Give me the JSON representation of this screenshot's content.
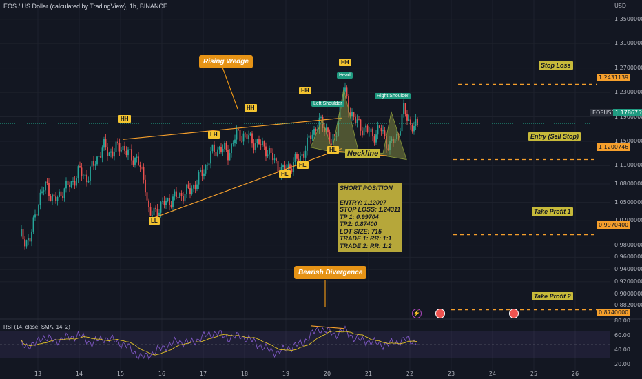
{
  "header": {
    "title": "EOS / US Dollar (calculated by TradingView), 1h, BINANCE"
  },
  "axis": {
    "currency": "USD",
    "y_ticks": [
      "1.3500000",
      "1.3100000",
      "1.2700000",
      "1.2300000",
      "1.1900000",
      "1.1500000",
      "1.1100000",
      "1.0800000",
      "1.0500000",
      "1.0200000",
      "0.9800000",
      "0.9600000",
      "0.9400000",
      "0.9200000",
      "0.9000000",
      "0.8820000"
    ],
    "x_ticks": [
      "13",
      "14",
      "15",
      "16",
      "17",
      "18",
      "19",
      "20",
      "21",
      "22",
      "23",
      "24",
      "25",
      "26"
    ],
    "price_labels": {
      "stop_loss": "1.2431139",
      "entry": "1.1200746",
      "tp1": "0.9970400",
      "tp2": "0.8740000"
    },
    "symbol": "EOSUSD",
    "last_price": "1.1786759"
  },
  "annotations": {
    "rising_wedge": "Rising  Wedge",
    "bearish_divergence": "Bearish Divergence",
    "neckline": "Neckline",
    "head": "Head",
    "left_shoulder": "Left Shoulder",
    "right_shoulder": "Right Shoulder",
    "swing_tags": {
      "hh1": "HH",
      "hh2": "HH",
      "hh3": "HH",
      "hh4": "HH",
      "lh": "LH",
      "ll": "LL",
      "hl1": "HL",
      "hl2": "HL",
      "hl3": "HL"
    },
    "levels": {
      "stop_loss": "Stop Loss",
      "entry": "Entry (Sell Stop)",
      "tp1": "Take Profit 1",
      "tp2": "Take Profit 2"
    }
  },
  "trade_box": {
    "title": "SHORT POSITION",
    "lines": [
      "ENTRY: 1.12007",
      "STOP LOSS: 1.24311",
      "TP 1: 0.99704",
      "TP2: 0.87400",
      "LOT SIZE: 715",
      "TRADE 1: RR: 1:1",
      "TRADE 2: RR: 1:2"
    ]
  },
  "rsi": {
    "title": "RSI (14, close, SMA, 14, 2)",
    "ticks": [
      "80.00",
      "60.00",
      "40.00",
      "20.00"
    ]
  },
  "colors": {
    "bg": "#131722",
    "up": "#26a69a",
    "down": "#ef5350",
    "orange": "#f59f2c",
    "callout": "#e69316",
    "teal": "#1f9a80",
    "rsi_line": "#7e57c2",
    "rsi_sma": "#e0c027"
  },
  "chart_data": {
    "type": "candlestick",
    "title": "EOS / US Dollar (calculated by TradingView), 1h, BINANCE",
    "x_dates": [
      "13",
      "14",
      "15",
      "16",
      "17",
      "18",
      "19",
      "20",
      "21",
      "22"
    ],
    "ylim": [
      0.86,
      1.37
    ],
    "levels": {
      "stop_loss": 1.24311,
      "entry": 1.12007,
      "tp1": 0.99704,
      "tp2": 0.874
    },
    "price_path": [
      [
        12.6,
        0.995
      ],
      [
        12.8,
        0.985
      ],
      [
        13.0,
        1.05
      ],
      [
        13.2,
        1.08
      ],
      [
        13.4,
        1.05
      ],
      [
        13.6,
        1.07
      ],
      [
        13.8,
        1.08
      ],
      [
        14.0,
        1.1
      ],
      [
        14.2,
        1.09
      ],
      [
        14.4,
        1.12
      ],
      [
        14.6,
        1.14
      ],
      [
        14.8,
        1.13
      ],
      [
        15.0,
        1.145
      ],
      [
        15.15,
        1.13
      ],
      [
        15.4,
        1.12
      ],
      [
        15.6,
        1.08
      ],
      [
        15.7,
        1.025
      ],
      [
        15.9,
        1.04
      ],
      [
        16.1,
        1.05
      ],
      [
        16.4,
        1.06
      ],
      [
        16.7,
        1.07
      ],
      [
        17.0,
        1.1
      ],
      [
        17.2,
        1.13
      ],
      [
        17.4,
        1.14
      ],
      [
        17.6,
        1.13
      ],
      [
        17.8,
        1.16
      ],
      [
        18.0,
        1.16
      ],
      [
        18.2,
        1.15
      ],
      [
        18.5,
        1.14
      ],
      [
        18.7,
        1.12
      ],
      [
        18.9,
        1.1
      ],
      [
        19.1,
        1.11
      ],
      [
        19.3,
        1.12
      ],
      [
        19.5,
        1.14
      ],
      [
        19.6,
        1.16
      ],
      [
        19.8,
        1.18
      ],
      [
        20.0,
        1.17
      ],
      [
        20.1,
        1.14
      ],
      [
        20.2,
        1.16
      ],
      [
        20.3,
        1.2
      ],
      [
        20.4,
        1.235
      ],
      [
        20.55,
        1.2
      ],
      [
        20.7,
        1.18
      ],
      [
        20.9,
        1.17
      ],
      [
        21.1,
        1.16
      ],
      [
        21.3,
        1.17
      ],
      [
        21.5,
        1.14
      ],
      [
        21.7,
        1.16
      ],
      [
        21.85,
        1.2
      ],
      [
        22.0,
        1.18
      ],
      [
        22.2,
        1.17
      ]
    ],
    "rsi_path": [
      [
        12.6,
        50
      ],
      [
        12.9,
        48
      ],
      [
        13.1,
        62
      ],
      [
        13.4,
        55
      ],
      [
        13.7,
        60
      ],
      [
        14.0,
        64
      ],
      [
        14.3,
        52
      ],
      [
        14.6,
        60
      ],
      [
        14.9,
        55
      ],
      [
        15.2,
        46
      ],
      [
        15.5,
        30
      ],
      [
        15.8,
        38
      ],
      [
        16.1,
        48
      ],
      [
        16.4,
        55
      ],
      [
        16.7,
        52
      ],
      [
        17.0,
        62
      ],
      [
        17.3,
        68
      ],
      [
        17.6,
        60
      ],
      [
        17.9,
        63
      ],
      [
        18.2,
        55
      ],
      [
        18.5,
        44
      ],
      [
        18.8,
        38
      ],
      [
        19.1,
        46
      ],
      [
        19.4,
        52
      ],
      [
        19.6,
        64
      ],
      [
        19.8,
        74
      ],
      [
        20.0,
        70
      ],
      [
        20.2,
        65
      ],
      [
        20.4,
        72
      ],
      [
        20.7,
        58
      ],
      [
        21.0,
        55
      ],
      [
        21.3,
        50
      ],
      [
        21.6,
        52
      ],
      [
        21.9,
        58
      ],
      [
        22.2,
        53
      ]
    ],
    "rsi_ylim": [
      15,
      85
    ]
  }
}
